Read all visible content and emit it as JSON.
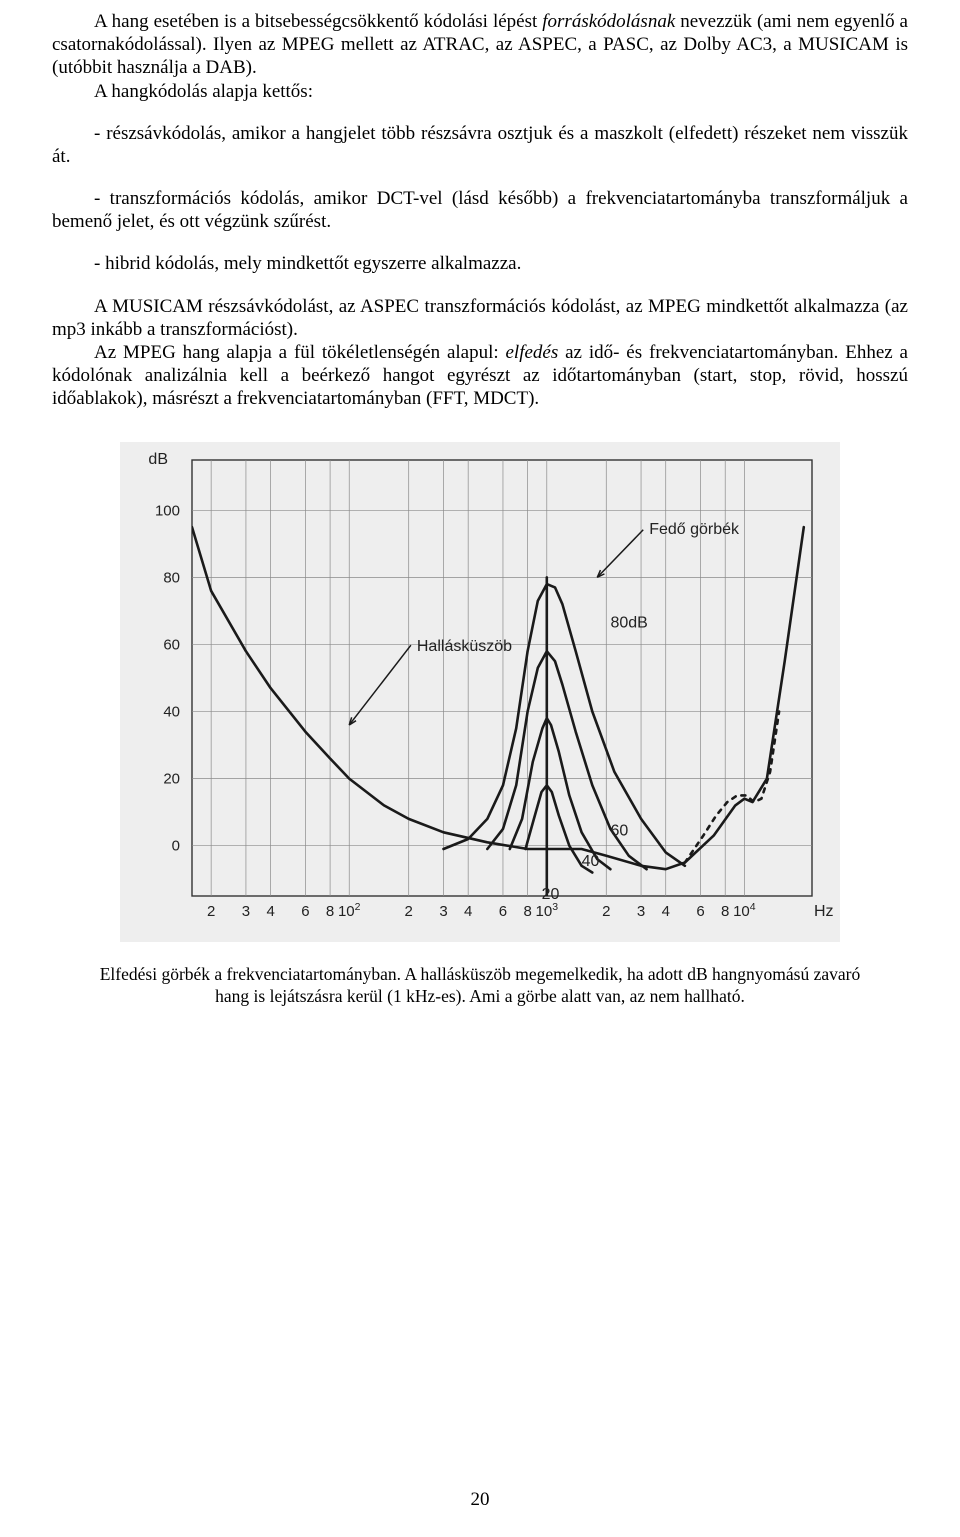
{
  "paragraphs": {
    "p1_a": "A hang esetében is a bitsebességcsökkentő kódolási lépést ",
    "p1_b": "forráskódolásnak",
    "p1_c": " nevezzük (ami nem egyenlő a csatornakódolással). Ilyen az MPEG mellett az ATRAC, az ASPEC, a PASC, az Dolby AC3, a MUSICAM is (utóbbit használja a DAB).",
    "p2": "A hangkódolás alapja kettős:",
    "p3": "- részsávkódolás, amikor a hangjelet több részsávra osztjuk és a maszkolt (elfedett) részeket nem visszük át.",
    "p4": "- transzformációs kódolás, amikor DCT-vel (lásd később) a frekvenciatartományba transzformáljuk a bemenő jelet, és ott végzünk szűrést.",
    "p5": "- hibrid kódolás, mely mindkettőt egyszerre alkalmazza.",
    "p6": "A MUSICAM részsávkódolást, az ASPEC transzformációs kódolást, az MPEG mindkettőt alkalmazza (az mp3 inkább a transzformációst).",
    "p7_a": "Az MPEG hang alapja a fül tökéletlenségén alapul: ",
    "p7_b": "elfedés",
    "p7_c": " az idő- és frekvenciatartományban. Ehhez a kódolónak analizálnia kell a beérkező hangot egyrészt az időtartományban (start, stop, rövid, hosszú időablakok), másrészt a frekvenciatartományban (FFT, MDCT)."
  },
  "caption": "Elfedési görbék a frekvenciatartományban. A hallásküszöb megemelkedik, ha adott dB hangnyomású zavaró hang is lejátszásra kerül (1 kHz-es). Ami a görbe alatt van, az nem hallható.",
  "page_number": "20",
  "chart": {
    "type": "line",
    "background_color": "#eeeeee",
    "plot_background": "#eeeeee",
    "axis_color": "#333333",
    "grid_color": "#8a8a8a",
    "curve_color": "#1a1a1a",
    "label_color": "#222222",
    "font_family": "sans-serif",
    "axis_label_fontsize": 16,
    "tick_fontsize": 15,
    "annotation_fontsize": 16,
    "linewidth_curve": 2.6,
    "linewidth_grid": 0.7,
    "y_unit": "dB",
    "x_unit": "Hz",
    "y_ticks": [
      0,
      20,
      40,
      60,
      80,
      100
    ],
    "y_range": [
      -15,
      115
    ],
    "x_ticks_labels": [
      "2",
      "3",
      "4",
      "6",
      "8",
      "10²",
      "2",
      "3",
      "4",
      "6",
      "8",
      "10³",
      "2",
      "3",
      "4",
      "6",
      "8",
      "10⁴"
    ],
    "x_log_values": [
      20,
      30,
      40,
      60,
      80,
      100,
      200,
      300,
      400,
      600,
      800,
      1000,
      2000,
      3000,
      4000,
      6000,
      8000,
      10000
    ],
    "x_range_hz": [
      16,
      22000
    ],
    "annotations": {
      "hallaskuszob": {
        "text": "Hallásküszöb",
        "target_hz": 100,
        "target_db": 36
      },
      "fedo_gorbek": {
        "text": "Fedő görbék",
        "target_hz": 1800,
        "target_db": 80
      },
      "db80": {
        "text": "80dB",
        "hz": 2100,
        "db": 65
      },
      "db60": {
        "text": "60",
        "hz": 2100,
        "db": 3
      },
      "db40": {
        "text": "40",
        "hz": 1500,
        "db": -6
      },
      "db20": {
        "text": "20",
        "hz": 1500,
        "db": -15
      }
    },
    "curves": {
      "threshold": [
        [
          16,
          95
        ],
        [
          20,
          76
        ],
        [
          30,
          58
        ],
        [
          40,
          47
        ],
        [
          60,
          34
        ],
        [
          80,
          26
        ],
        [
          100,
          20
        ],
        [
          150,
          12
        ],
        [
          200,
          8
        ],
        [
          300,
          4
        ],
        [
          500,
          1
        ],
        [
          800,
          -1
        ],
        [
          1000,
          -1
        ],
        [
          1500,
          -1
        ],
        [
          2000,
          -3
        ],
        [
          3000,
          -6
        ],
        [
          4000,
          -7
        ],
        [
          5000,
          -5
        ],
        [
          7000,
          3
        ],
        [
          9000,
          12
        ],
        [
          10000,
          14
        ],
        [
          11000,
          13
        ],
        [
          13000,
          20
        ],
        [
          16000,
          55
        ],
        [
          20000,
          95
        ]
      ],
      "mask80": [
        [
          300,
          -1
        ],
        [
          400,
          2
        ],
        [
          500,
          8
        ],
        [
          600,
          18
        ],
        [
          700,
          35
        ],
        [
          800,
          58
        ],
        [
          900,
          73
        ],
        [
          1000,
          78
        ],
        [
          1100,
          77
        ],
        [
          1200,
          72
        ],
        [
          1400,
          58
        ],
        [
          1700,
          40
        ],
        [
          2200,
          22
        ],
        [
          3000,
          8
        ],
        [
          4000,
          -2
        ],
        [
          5000,
          -6
        ]
      ],
      "mask60": [
        [
          500,
          -1
        ],
        [
          600,
          5
        ],
        [
          700,
          18
        ],
        [
          800,
          40
        ],
        [
          900,
          53
        ],
        [
          1000,
          58
        ],
        [
          1100,
          55
        ],
        [
          1200,
          48
        ],
        [
          1400,
          34
        ],
        [
          1700,
          18
        ],
        [
          2100,
          5
        ],
        [
          2600,
          -3
        ],
        [
          3200,
          -7
        ]
      ],
      "mask40": [
        [
          650,
          -1
        ],
        [
          750,
          8
        ],
        [
          850,
          25
        ],
        [
          950,
          35
        ],
        [
          1000,
          38
        ],
        [
          1050,
          36
        ],
        [
          1150,
          28
        ],
        [
          1300,
          15
        ],
        [
          1500,
          4
        ],
        [
          1800,
          -4
        ],
        [
          2100,
          -7
        ]
      ],
      "mask20": [
        [
          780,
          -1
        ],
        [
          860,
          8
        ],
        [
          940,
          16
        ],
        [
          1000,
          18
        ],
        [
          1060,
          16
        ],
        [
          1150,
          9
        ],
        [
          1300,
          0
        ],
        [
          1500,
          -6
        ],
        [
          1700,
          -8
        ]
      ],
      "masker_stem": [
        [
          1000,
          -15
        ],
        [
          1000,
          80
        ]
      ],
      "top_bump_dash": [
        [
          5000,
          -5
        ],
        [
          6200,
          3
        ],
        [
          7200,
          9
        ],
        [
          8200,
          13
        ],
        [
          9200,
          15
        ],
        [
          10200,
          15
        ],
        [
          11200,
          13
        ],
        [
          12200,
          14
        ],
        [
          13500,
          22
        ],
        [
          15000,
          40
        ]
      ]
    }
  }
}
